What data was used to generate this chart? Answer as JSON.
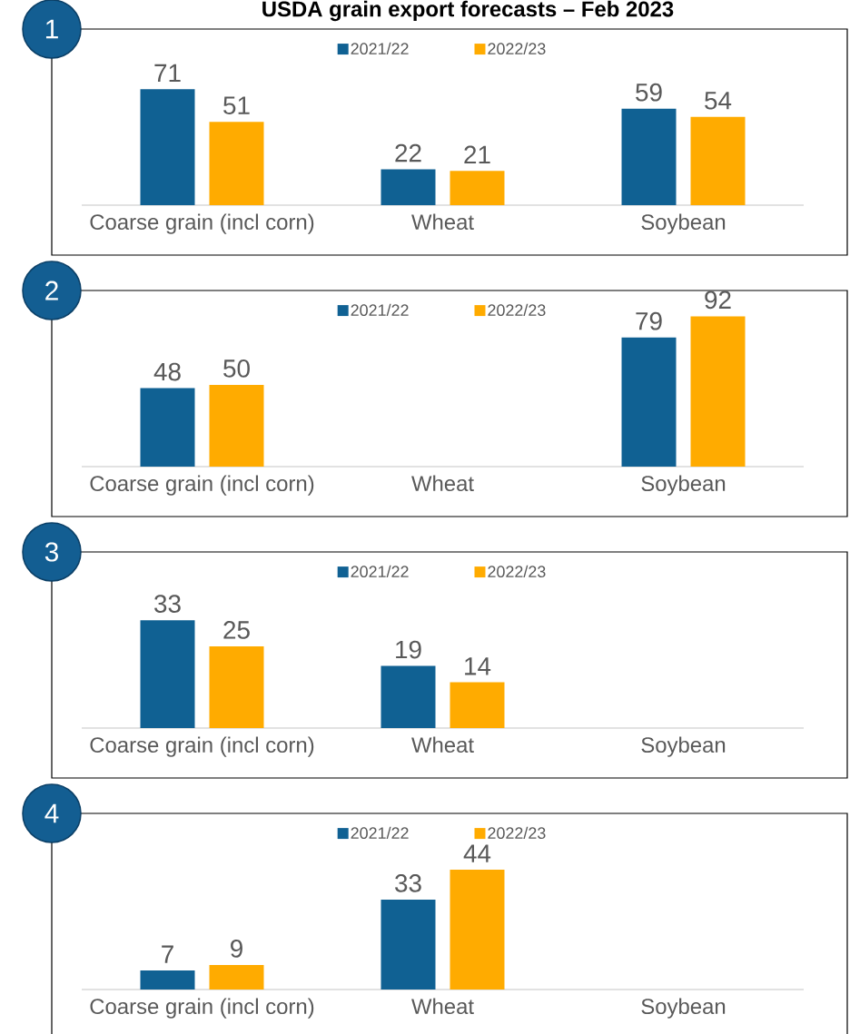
{
  "chart_data": [
    {
      "type": "bar",
      "title": "USDA grain export forecasts – Feb 2023",
      "annotations": [
        "1"
      ],
      "categories": [
        "Coarse grain (incl corn)",
        "Wheat",
        "Soybean"
      ],
      "series": [
        {
          "name": "2021/22",
          "color": "#106193",
          "values": [
            71,
            22,
            59
          ]
        },
        {
          "name": "2022/23",
          "color": "#ffab00",
          "values": [
            51,
            21,
            54
          ]
        }
      ],
      "ylim": [
        0,
        100
      ],
      "data_labels": true,
      "legend": "top"
    },
    {
      "type": "bar",
      "annotations": [
        "2"
      ],
      "categories": [
        "Coarse grain (incl corn)",
        "Wheat",
        "Soybean"
      ],
      "series": [
        {
          "name": "2021/22",
          "color": "#106193",
          "values": [
            48,
            null,
            79
          ]
        },
        {
          "name": "2022/23",
          "color": "#ffab00",
          "values": [
            50,
            null,
            92
          ]
        }
      ],
      "ylim": [
        0,
        100
      ],
      "data_labels": true,
      "legend": "top"
    },
    {
      "type": "bar",
      "annotations": [
        "3"
      ],
      "categories": [
        "Coarse grain (incl corn)",
        "Wheat",
        "Soybean"
      ],
      "series": [
        {
          "name": "2021/22",
          "color": "#106193",
          "values": [
            33,
            19,
            null
          ]
        },
        {
          "name": "2022/23",
          "color": "#ffab00",
          "values": [
            25,
            14,
            null
          ]
        }
      ],
      "ylim": [
        0,
        50
      ],
      "data_labels": true,
      "legend": "top"
    },
    {
      "type": "bar",
      "annotations": [
        "4"
      ],
      "categories": [
        "Coarse grain (incl corn)",
        "Wheat",
        "Soybean"
      ],
      "series": [
        {
          "name": "2021/22",
          "color": "#106193",
          "values": [
            7,
            33,
            null
          ]
        },
        {
          "name": "2022/23",
          "color": "#ffab00",
          "values": [
            9,
            44,
            null
          ]
        }
      ],
      "ylim": [
        0,
        60
      ],
      "data_labels": true,
      "legend": "top"
    }
  ]
}
